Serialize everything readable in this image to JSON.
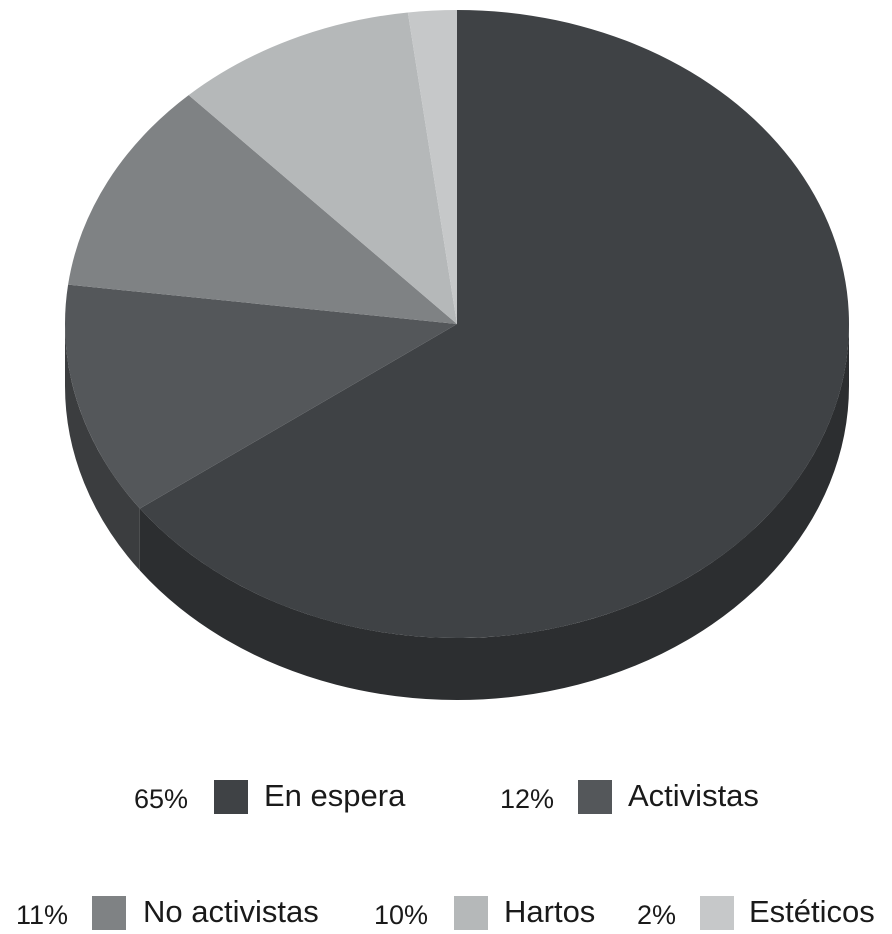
{
  "chart_data": {
    "type": "pie",
    "title": "",
    "slices": [
      {
        "label": "En espera",
        "value": 65,
        "pct_label": "65%",
        "color": "#3f4245",
        "side_color": "#2c2e30"
      },
      {
        "label": "Activistas",
        "value": 12,
        "pct_label": "12%",
        "color": "#54575a",
        "side_color": "#3b3d3f"
      },
      {
        "label": "No activistas",
        "value": 11,
        "pct_label": "11%",
        "color": "#7f8284",
        "side_color": "#5a5c5e"
      },
      {
        "label": "Hartos",
        "value": 10,
        "pct_label": "10%",
        "color": "#b5b8b9",
        "side_color": "#8f9192"
      },
      {
        "label": "Estéticos",
        "value": 2,
        "pct_label": "2%",
        "color": "#c6c8c9",
        "side_color": "#9c9e9f"
      }
    ],
    "legend_position": "bottom",
    "style": "3d"
  }
}
